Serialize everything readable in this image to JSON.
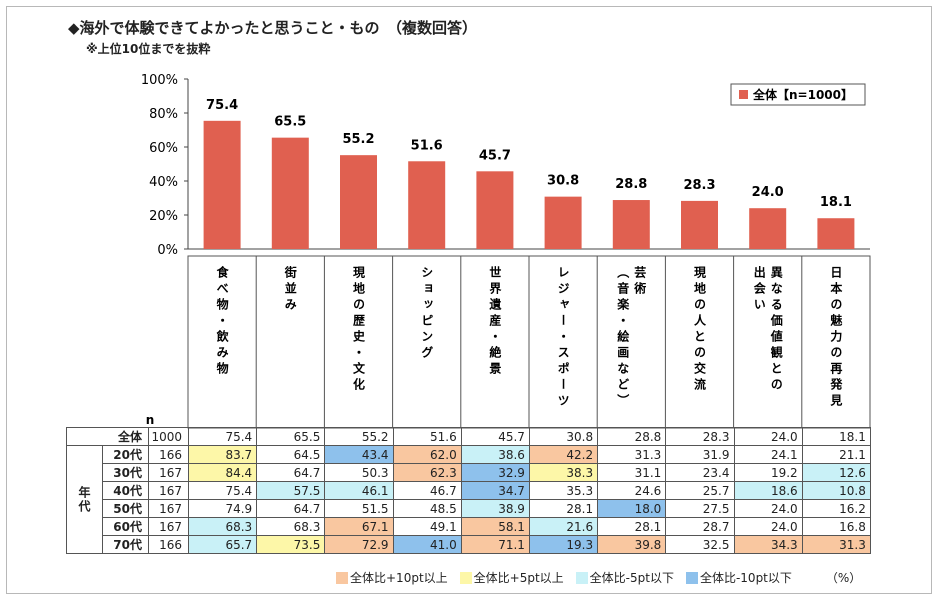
{
  "title": "◆海外で体験できてよかったと思うこと・もの　（複数回答）",
  "subtitle": "※上位10位までを抜粋",
  "colors": {
    "bar": "#e06050",
    "hi10": "#f9c7a0",
    "hi5": "#fdf7a8",
    "lo5": "#c9f1f7",
    "lo10": "#8ec1ec"
  },
  "chart_data": {
    "type": "bar",
    "legend": "全体【n=1000】",
    "legend_position": "top-right",
    "ylim": [
      0,
      100
    ],
    "yticks": [
      "0%",
      "20%",
      "40%",
      "60%",
      "80%",
      "100%"
    ],
    "categories": [
      "食べ物・飲み物",
      "街並み",
      "現地の歴史・文化",
      "ショッピング",
      "世界遺産・絶景",
      "レジャー・スポーツ",
      "芸術（音楽・絵画など）",
      "現地の人との交流",
      "異なる価値観との出会い",
      "日本の魅力の再発見"
    ],
    "category_lines": [
      [
        "食べ物・飲み物"
      ],
      [
        "街並み"
      ],
      [
        "現地の歴史・文化"
      ],
      [
        "ショッピング"
      ],
      [
        "世界遺産・絶景"
      ],
      [
        "レジャー・スポーツ"
      ],
      [
        "芸術",
        "（音楽・絵画など）"
      ],
      [
        "現地の人との交流"
      ],
      [
        "異なる価値観との",
        "出会い"
      ],
      [
        "日本の魅力の再発見"
      ]
    ],
    "values": [
      75.4,
      65.5,
      55.2,
      51.6,
      45.7,
      30.8,
      28.8,
      28.3,
      24.0,
      18.1
    ],
    "value_labels": [
      "75.4",
      "65.5",
      "55.2",
      "51.6",
      "45.7",
      "30.8",
      "28.8",
      "28.3",
      "24.0",
      "18.1"
    ]
  },
  "table": {
    "n_header": "n",
    "group_label": "年代",
    "total_row": {
      "label": "全体",
      "n": "1000",
      "values": [
        "75.4",
        "65.5",
        "55.2",
        "51.6",
        "45.7",
        "30.8",
        "28.8",
        "28.3",
        "24.0",
        "18.1"
      ]
    },
    "rows": [
      {
        "label": "20代",
        "n": "166",
        "values": [
          "83.7",
          "64.5",
          "43.4",
          "62.0",
          "38.6",
          "42.2",
          "31.3",
          "31.9",
          "24.1",
          "21.1"
        ],
        "highlight": [
          "hi5",
          "",
          "lo10",
          "hi10",
          "lo5",
          "hi10",
          "",
          "",
          "",
          ""
        ]
      },
      {
        "label": "30代",
        "n": "167",
        "values": [
          "84.4",
          "64.7",
          "50.3",
          "62.3",
          "32.9",
          "38.3",
          "31.1",
          "23.4",
          "19.2",
          "12.6"
        ],
        "highlight": [
          "hi5",
          "",
          "",
          "hi10",
          "lo10",
          "hi5",
          "",
          "",
          "",
          "lo5"
        ]
      },
      {
        "label": "40代",
        "n": "167",
        "values": [
          "75.4",
          "57.5",
          "46.1",
          "46.7",
          "34.7",
          "35.3",
          "24.6",
          "25.7",
          "18.6",
          "10.8"
        ],
        "highlight": [
          "",
          "lo5",
          "lo5",
          "",
          "lo10",
          "",
          "",
          "",
          "lo5",
          "lo5"
        ]
      },
      {
        "label": "50代",
        "n": "167",
        "values": [
          "74.9",
          "64.7",
          "51.5",
          "48.5",
          "38.9",
          "28.1",
          "18.0",
          "27.5",
          "24.0",
          "16.2"
        ],
        "highlight": [
          "",
          "",
          "",
          "",
          "lo5",
          "",
          "lo10",
          "",
          "",
          ""
        ]
      },
      {
        "label": "60代",
        "n": "167",
        "values": [
          "68.3",
          "68.3",
          "67.1",
          "49.1",
          "58.1",
          "21.6",
          "28.1",
          "28.7",
          "24.0",
          "16.8"
        ],
        "highlight": [
          "lo5",
          "",
          "hi10",
          "",
          "hi10",
          "lo5",
          "",
          "",
          "",
          ""
        ]
      },
      {
        "label": "70代",
        "n": "166",
        "values": [
          "65.7",
          "73.5",
          "72.9",
          "41.0",
          "71.1",
          "19.3",
          "39.8",
          "32.5",
          "34.3",
          "31.3"
        ],
        "highlight": [
          "lo5",
          "hi5",
          "hi10",
          "lo10",
          "hi10",
          "lo10",
          "hi10",
          "",
          "hi10",
          "hi10"
        ]
      }
    ]
  },
  "table_legend": {
    "items": [
      {
        "key": "hi10",
        "label": "全体比+10pt以上"
      },
      {
        "key": "hi5",
        "label": "全体比+5pt以上"
      },
      {
        "key": "lo5",
        "label": "全体比-5pt以下"
      },
      {
        "key": "lo10",
        "label": "全体比-10pt以下"
      }
    ],
    "unit": "（%）"
  }
}
